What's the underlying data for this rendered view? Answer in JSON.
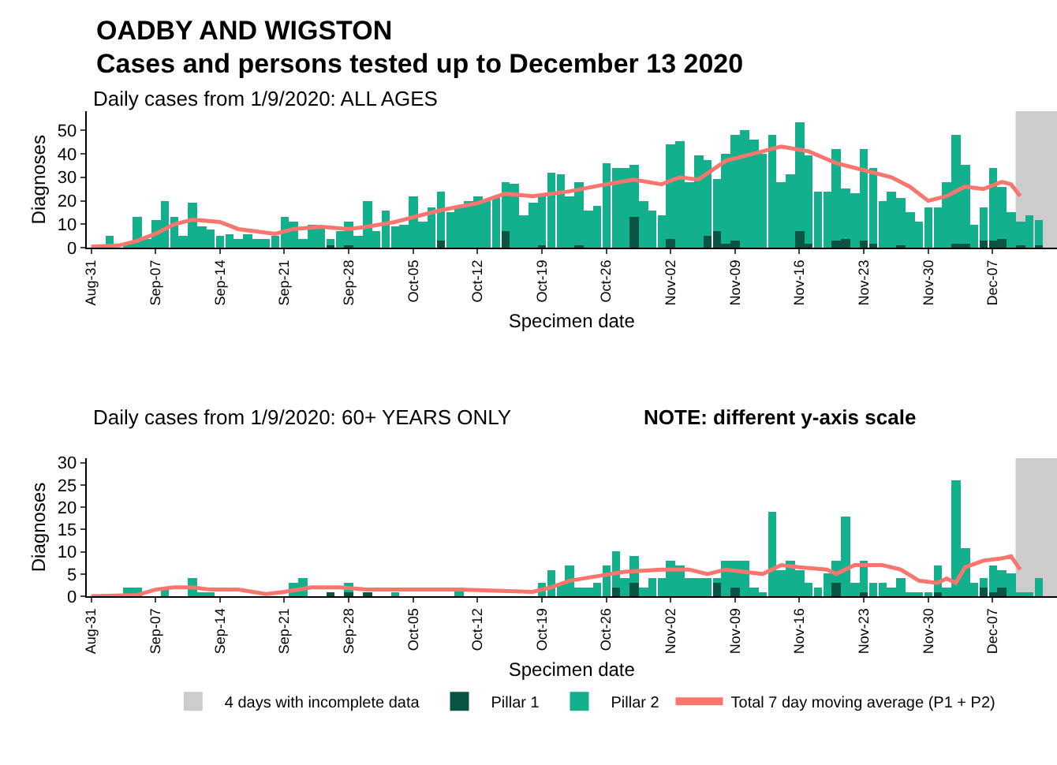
{
  "chart_data": [
    {
      "type": "bar",
      "title": "OADBY AND WIGSTON",
      "subtitle": "Cases and persons tested up to December 13 2020",
      "annotations": [
        "Daily cases from 1/9/2020: ALL AGES"
      ],
      "xlabel": "Specimen date",
      "ylabel": "Diagnoses",
      "stacked": true,
      "legend": "bottom",
      "x": [
        "2020-08-31",
        "2020-09-01",
        "2020-09-02",
        "2020-09-03",
        "2020-09-04",
        "2020-09-05",
        "2020-09-06",
        "2020-09-07",
        "2020-09-08",
        "2020-09-09",
        "2020-09-10",
        "2020-09-11",
        "2020-09-12",
        "2020-09-13",
        "2020-09-14",
        "2020-09-15",
        "2020-09-16",
        "2020-09-17",
        "2020-09-18",
        "2020-09-19",
        "2020-09-20",
        "2020-09-21",
        "2020-09-22",
        "2020-09-23",
        "2020-09-24",
        "2020-09-25",
        "2020-09-26",
        "2020-09-27",
        "2020-09-28",
        "2020-09-29",
        "2020-09-30",
        "2020-10-01",
        "2020-10-02",
        "2020-10-03",
        "2020-10-04",
        "2020-10-05",
        "2020-10-06",
        "2020-10-07",
        "2020-10-08",
        "2020-10-09",
        "2020-10-10",
        "2020-10-11",
        "2020-10-12",
        "2020-10-13",
        "2020-10-14",
        "2020-10-15",
        "2020-10-16",
        "2020-10-17",
        "2020-10-18",
        "2020-10-19",
        "2020-10-20",
        "2020-10-21",
        "2020-10-22",
        "2020-10-23",
        "2020-10-24",
        "2020-10-25",
        "2020-10-26",
        "2020-10-27",
        "2020-10-28",
        "2020-10-29",
        "2020-10-30",
        "2020-10-31",
        "2020-11-01",
        "2020-11-02",
        "2020-11-03",
        "2020-11-04",
        "2020-11-05",
        "2020-11-06",
        "2020-11-07",
        "2020-11-08",
        "2020-11-09",
        "2020-11-10",
        "2020-11-11",
        "2020-11-12",
        "2020-11-13",
        "2020-11-14",
        "2020-11-15",
        "2020-11-16",
        "2020-11-17",
        "2020-11-18",
        "2020-11-19",
        "2020-11-20",
        "2020-11-21",
        "2020-11-22",
        "2020-11-23",
        "2020-11-24",
        "2020-11-25",
        "2020-11-26",
        "2020-11-27",
        "2020-11-28",
        "2020-11-29",
        "2020-11-30",
        "2020-12-01",
        "2020-12-02",
        "2020-12-03",
        "2020-12-04",
        "2020-12-05",
        "2020-12-06",
        "2020-12-07",
        "2020-12-08",
        "2020-12-09",
        "2020-12-10",
        "2020-12-11",
        "2020-12-12",
        "2020-12-13"
      ],
      "xlim": [
        "2020-08-30T12:00",
        "2020-12-14"
      ],
      "xticks": [
        {
          "value": "2020-08-31",
          "label": "Aug-31"
        },
        {
          "value": "2020-09-07",
          "label": "Sep-07"
        },
        {
          "value": "2020-09-14",
          "label": "Sep-14"
        },
        {
          "value": "2020-09-21",
          "label": "Sep-21"
        },
        {
          "value": "2020-09-28",
          "label": "Sep-28"
        },
        {
          "value": "2020-10-05",
          "label": "Oct-05"
        },
        {
          "value": "2020-10-12",
          "label": "Oct-12"
        },
        {
          "value": "2020-10-19",
          "label": "Oct-19"
        },
        {
          "value": "2020-10-26",
          "label": "Oct-26"
        },
        {
          "value": "2020-11-02",
          "label": "Nov-02"
        },
        {
          "value": "2020-11-09",
          "label": "Nov-09"
        },
        {
          "value": "2020-11-16",
          "label": "Nov-16"
        },
        {
          "value": "2020-11-23",
          "label": "Nov-23"
        },
        {
          "value": "2020-11-30",
          "label": "Nov-30"
        },
        {
          "value": "2020-12-07",
          "label": "Dec-07"
        }
      ],
      "ylim": [
        0,
        58
      ],
      "yticks": [
        0,
        10,
        20,
        30,
        40,
        50
      ],
      "bands": [
        {
          "axis": "x",
          "from": "2020-12-09T12:00",
          "to": "2020-12-14",
          "label": "4 days with incomplete data",
          "color": "#cccccc"
        }
      ],
      "series": [
        {
          "name": "Pillar 1",
          "color": "#0a5444",
          "values": [
            0,
            0,
            0,
            0,
            0,
            0,
            0,
            0,
            0,
            0,
            0,
            0,
            0,
            0,
            0,
            0,
            0,
            0,
            0,
            0,
            0,
            0,
            0,
            0,
            0,
            0,
            1,
            0,
            1,
            0,
            0,
            0,
            0,
            0,
            0,
            0,
            0,
            0,
            3,
            0,
            0,
            0,
            0,
            0,
            0,
            7,
            0,
            0,
            0,
            1,
            0,
            0,
            0,
            1,
            0,
            0,
            0,
            0,
            0,
            13,
            0,
            0,
            0,
            4,
            0,
            0,
            0,
            5,
            7,
            2,
            3,
            0,
            0,
            0,
            0,
            0,
            0,
            7,
            2,
            0,
            0,
            3,
            4,
            0,
            3,
            2,
            0,
            0,
            1,
            0,
            0,
            0,
            0,
            0,
            2,
            2,
            0,
            3,
            3,
            4,
            0,
            1,
            0,
            1,
            0
          ]
        },
        {
          "name": "Pillar 2",
          "color": "#13b08e",
          "values": [
            null,
            0,
            5,
            null,
            2,
            13,
            4,
            12,
            20,
            13,
            5,
            19,
            9,
            8,
            5,
            6,
            4,
            6,
            4,
            4,
            5,
            13,
            11,
            4,
            10,
            9,
            3,
            7,
            10,
            5,
            20,
            7,
            16,
            9,
            10,
            22,
            11,
            17,
            21,
            15,
            17,
            20,
            22,
            20,
            22,
            21,
            27,
            14,
            19,
            21,
            32,
            31,
            22,
            27,
            16,
            18,
            36,
            34,
            34,
            22,
            20,
            16,
            14,
            40,
            45,
            28,
            39,
            32,
            22,
            38,
            45,
            50,
            46,
            40,
            48,
            28,
            31,
            46,
            37,
            24,
            24,
            39,
            21,
            23,
            39,
            32,
            20,
            24,
            20,
            15,
            11,
            17,
            17,
            28,
            46,
            33,
            10,
            14,
            31,
            22,
            15,
            10,
            14,
            11,
            0
          ]
        },
        {
          "name": "Total 7 day moving average (P1 + P2)",
          "type": "line",
          "color": "#f8766d",
          "x": [
            "2020-08-31",
            "2020-09-03",
            "2020-09-05",
            "2020-09-07",
            "2020-09-09",
            "2020-09-11",
            "2020-09-14",
            "2020-09-16",
            "2020-09-18",
            "2020-09-20",
            "2020-09-22",
            "2020-09-25",
            "2020-09-28",
            "2020-09-30",
            "2020-10-03",
            "2020-10-05",
            "2020-10-08",
            "2020-10-12",
            "2020-10-15",
            "2020-10-18",
            "2020-10-22",
            "2020-10-26",
            "2020-10-29",
            "2020-11-01",
            "2020-11-03",
            "2020-11-05",
            "2020-11-08",
            "2020-11-11",
            "2020-11-14",
            "2020-11-17",
            "2020-11-20",
            "2020-11-23",
            "2020-11-26",
            "2020-11-28",
            "2020-11-30",
            "2020-12-02",
            "2020-12-04",
            "2020-12-06",
            "2020-12-08",
            "2020-12-09",
            "2020-12-10"
          ],
          "values": [
            0.5,
            1,
            3,
            6,
            10,
            12,
            11,
            8,
            7,
            6,
            8,
            9,
            8,
            9,
            11,
            13,
            16,
            19,
            23,
            22,
            24,
            27,
            29,
            27,
            30,
            29,
            37,
            40,
            43,
            41,
            36,
            33,
            30,
            26,
            20,
            22,
            26,
            25,
            28,
            27,
            22
          ]
        }
      ]
    },
    {
      "type": "bar",
      "title": "Daily cases from 1/9/2020: 60+ YEARS ONLY",
      "annotations": [
        "NOTE: different y-axis scale"
      ],
      "xlabel": "Specimen date",
      "ylabel": "Diagnoses",
      "stacked": true,
      "legend": "bottom",
      "x": [
        "2020-08-31",
        "2020-09-01",
        "2020-09-02",
        "2020-09-03",
        "2020-09-04",
        "2020-09-05",
        "2020-09-06",
        "2020-09-07",
        "2020-09-08",
        "2020-09-09",
        "2020-09-10",
        "2020-09-11",
        "2020-09-12",
        "2020-09-13",
        "2020-09-14",
        "2020-09-15",
        "2020-09-16",
        "2020-09-17",
        "2020-09-18",
        "2020-09-19",
        "2020-09-20",
        "2020-09-21",
        "2020-09-22",
        "2020-09-23",
        "2020-09-24",
        "2020-09-25",
        "2020-09-26",
        "2020-09-27",
        "2020-09-28",
        "2020-09-29",
        "2020-09-30",
        "2020-10-01",
        "2020-10-02",
        "2020-10-03",
        "2020-10-04",
        "2020-10-05",
        "2020-10-06",
        "2020-10-07",
        "2020-10-08",
        "2020-10-09",
        "2020-10-10",
        "2020-10-11",
        "2020-10-12",
        "2020-10-13",
        "2020-10-14",
        "2020-10-15",
        "2020-10-16",
        "2020-10-17",
        "2020-10-18",
        "2020-10-19",
        "2020-10-20",
        "2020-10-21",
        "2020-10-22",
        "2020-10-23",
        "2020-10-24",
        "2020-10-25",
        "2020-10-26",
        "2020-10-27",
        "2020-10-28",
        "2020-10-29",
        "2020-10-30",
        "2020-10-31",
        "2020-11-01",
        "2020-11-02",
        "2020-11-03",
        "2020-11-04",
        "2020-11-05",
        "2020-11-06",
        "2020-11-07",
        "2020-11-08",
        "2020-11-09",
        "2020-11-10",
        "2020-11-11",
        "2020-11-12",
        "2020-11-13",
        "2020-11-14",
        "2020-11-15",
        "2020-11-16",
        "2020-11-17",
        "2020-11-18",
        "2020-11-19",
        "2020-11-20",
        "2020-11-21",
        "2020-11-22",
        "2020-11-23",
        "2020-11-24",
        "2020-11-25",
        "2020-11-26",
        "2020-11-27",
        "2020-11-28",
        "2020-11-29",
        "2020-11-30",
        "2020-12-01",
        "2020-12-02",
        "2020-12-03",
        "2020-12-04",
        "2020-12-05",
        "2020-12-06",
        "2020-12-07",
        "2020-12-08",
        "2020-12-09",
        "2020-12-10",
        "2020-12-11",
        "2020-12-12",
        "2020-12-13"
      ],
      "xlim": [
        "2020-08-30T12:00",
        "2020-12-14"
      ],
      "xticks": [
        {
          "value": "2020-08-31",
          "label": "Aug-31"
        },
        {
          "value": "2020-09-07",
          "label": "Sep-07"
        },
        {
          "value": "2020-09-14",
          "label": "Sep-14"
        },
        {
          "value": "2020-09-21",
          "label": "Sep-21"
        },
        {
          "value": "2020-09-28",
          "label": "Sep-28"
        },
        {
          "value": "2020-10-05",
          "label": "Oct-05"
        },
        {
          "value": "2020-10-12",
          "label": "Oct-12"
        },
        {
          "value": "2020-10-19",
          "label": "Oct-19"
        },
        {
          "value": "2020-10-26",
          "label": "Oct-26"
        },
        {
          "value": "2020-11-02",
          "label": "Nov-02"
        },
        {
          "value": "2020-11-09",
          "label": "Nov-09"
        },
        {
          "value": "2020-11-16",
          "label": "Nov-16"
        },
        {
          "value": "2020-11-23",
          "label": "Nov-23"
        },
        {
          "value": "2020-11-30",
          "label": "Nov-30"
        },
        {
          "value": "2020-12-07",
          "label": "Dec-07"
        }
      ],
      "ylim": [
        0,
        31
      ],
      "yticks": [
        0,
        5,
        10,
        15,
        20,
        25,
        30
      ],
      "bands": [
        {
          "axis": "x",
          "from": "2020-12-09T12:00",
          "to": "2020-12-14",
          "color": "#cccccc"
        }
      ],
      "series": [
        {
          "name": "Pillar 1",
          "color": "#0a5444",
          "values": [
            0,
            0,
            0,
            0,
            0,
            0,
            0,
            0,
            0,
            0,
            0,
            0,
            0,
            0,
            0,
            0,
            0,
            0,
            0,
            0,
            0,
            0,
            0,
            0,
            0,
            0,
            1,
            0,
            1,
            0,
            1,
            0,
            0,
            0,
            0,
            0,
            0,
            0,
            0,
            0,
            0,
            0,
            0,
            0,
            0,
            0,
            0,
            0,
            0,
            0,
            0,
            0,
            0,
            0,
            0,
            0,
            0,
            2,
            0,
            3,
            0,
            0,
            0,
            0,
            0,
            0,
            0,
            0,
            3,
            0,
            2,
            0,
            0,
            0,
            0,
            0,
            0,
            0,
            0,
            0,
            0,
            3,
            0,
            0,
            1,
            0,
            0,
            0,
            0,
            0,
            0,
            0,
            1,
            0,
            0,
            0,
            0,
            2,
            1,
            2,
            0,
            0,
            0,
            0,
            0
          ]
        },
        {
          "name": "Pillar 2",
          "color": "#13b08e",
          "values": [
            0,
            0,
            0,
            0,
            2,
            2,
            0,
            0,
            2,
            0,
            0,
            4,
            1,
            1,
            0,
            0,
            0,
            0,
            0,
            0,
            0,
            0,
            3,
            4,
            0,
            0,
            0,
            0,
            2,
            0,
            0,
            0,
            0,
            1,
            0,
            0,
            0,
            0,
            0,
            0,
            2,
            0,
            0,
            0,
            0,
            0,
            0,
            0,
            0,
            3,
            6,
            3,
            7,
            2,
            2,
            3,
            7,
            8,
            4,
            6,
            2,
            4,
            4,
            8,
            7,
            4,
            4,
            4,
            1,
            8,
            6,
            8,
            2,
            1,
            19,
            6,
            8,
            6,
            3,
            2,
            5,
            5,
            18,
            3,
            7,
            3,
            3,
            2,
            4,
            1,
            1,
            1,
            6,
            2,
            26,
            11,
            3,
            2,
            6,
            4,
            5,
            1,
            1,
            4,
            0
          ]
        },
        {
          "name": "Total 7 day moving average (P1 + P2)",
          "type": "line",
          "color": "#f8766d",
          "x": [
            "2020-08-31",
            "2020-09-05",
            "2020-09-07",
            "2020-09-09",
            "2020-09-11",
            "2020-09-13",
            "2020-09-16",
            "2020-09-19",
            "2020-09-21",
            "2020-09-24",
            "2020-09-27",
            "2020-09-30",
            "2020-10-10",
            "2020-10-18",
            "2020-10-20",
            "2020-10-22",
            "2020-10-25",
            "2020-10-28",
            "2020-11-01",
            "2020-11-04",
            "2020-11-06",
            "2020-11-08",
            "2020-11-12",
            "2020-11-14",
            "2020-11-16",
            "2020-11-19",
            "2020-11-20",
            "2020-11-22",
            "2020-11-25",
            "2020-11-27",
            "2020-11-29",
            "2020-12-01",
            "2020-12-02",
            "2020-12-03",
            "2020-12-04",
            "2020-12-06",
            "2020-12-08",
            "2020-12-09",
            "2020-12-10"
          ],
          "values": [
            0,
            0.3,
            1.5,
            2,
            2,
            1.5,
            1.5,
            0.5,
            1,
            2,
            2,
            1.5,
            1.5,
            1,
            2,
            3.5,
            4.5,
            5.5,
            6,
            6,
            5,
            6,
            5,
            7,
            6.5,
            6,
            5,
            7,
            7,
            6,
            3.5,
            3,
            4,
            3,
            6.5,
            8,
            8.5,
            9,
            6
          ]
        }
      ]
    }
  ]
}
